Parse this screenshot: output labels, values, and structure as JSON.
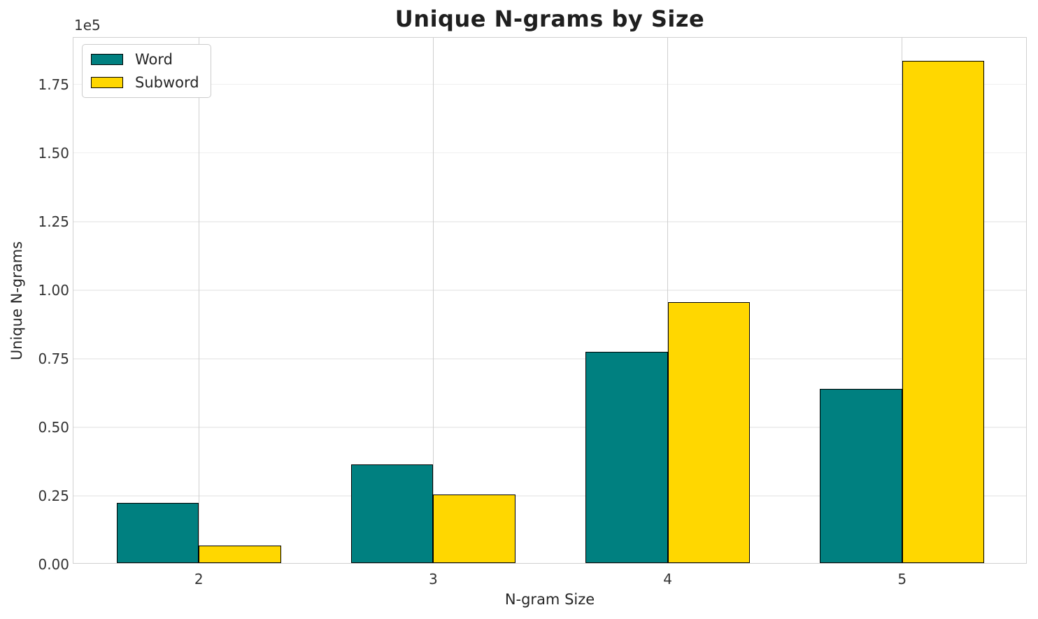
{
  "chart_data": {
    "type": "bar",
    "title": "Unique N-grams by Size",
    "xlabel": "N-gram Size",
    "ylabel": "Unique N-grams",
    "categories": [
      "2",
      "3",
      "4",
      "5"
    ],
    "x_positions": [
      2,
      3,
      4,
      5
    ],
    "series": [
      {
        "name": "Word",
        "color": "#008080",
        "values": [
          22000,
          36000,
          77000,
          63600
        ]
      },
      {
        "name": "Subword",
        "color": "#FFD700",
        "values": [
          6400,
          25000,
          95000,
          183000
        ]
      }
    ],
    "bar_width": 0.35,
    "edge_color": "#000000",
    "xlim": [
      1.465,
      5.535
    ],
    "ylim": [
      0,
      192000
    ],
    "y_ticks": [
      0,
      25000,
      50000,
      75000,
      100000,
      125000,
      150000,
      175000
    ],
    "y_tick_labels": [
      "0.00",
      "0.25",
      "0.50",
      "0.75",
      "1.00",
      "1.25",
      "1.50",
      "1.75"
    ],
    "offset_text": "1e5",
    "grid": true,
    "legend": {
      "position": "upper left"
    }
  },
  "style": {
    "word_color": "#008080",
    "subword_color": "#FFD700",
    "h_grid_color": "#efefef",
    "v_grid_color": "#cfcfcf",
    "spine_color": "#d0d0d0",
    "text_color": "#262626"
  }
}
